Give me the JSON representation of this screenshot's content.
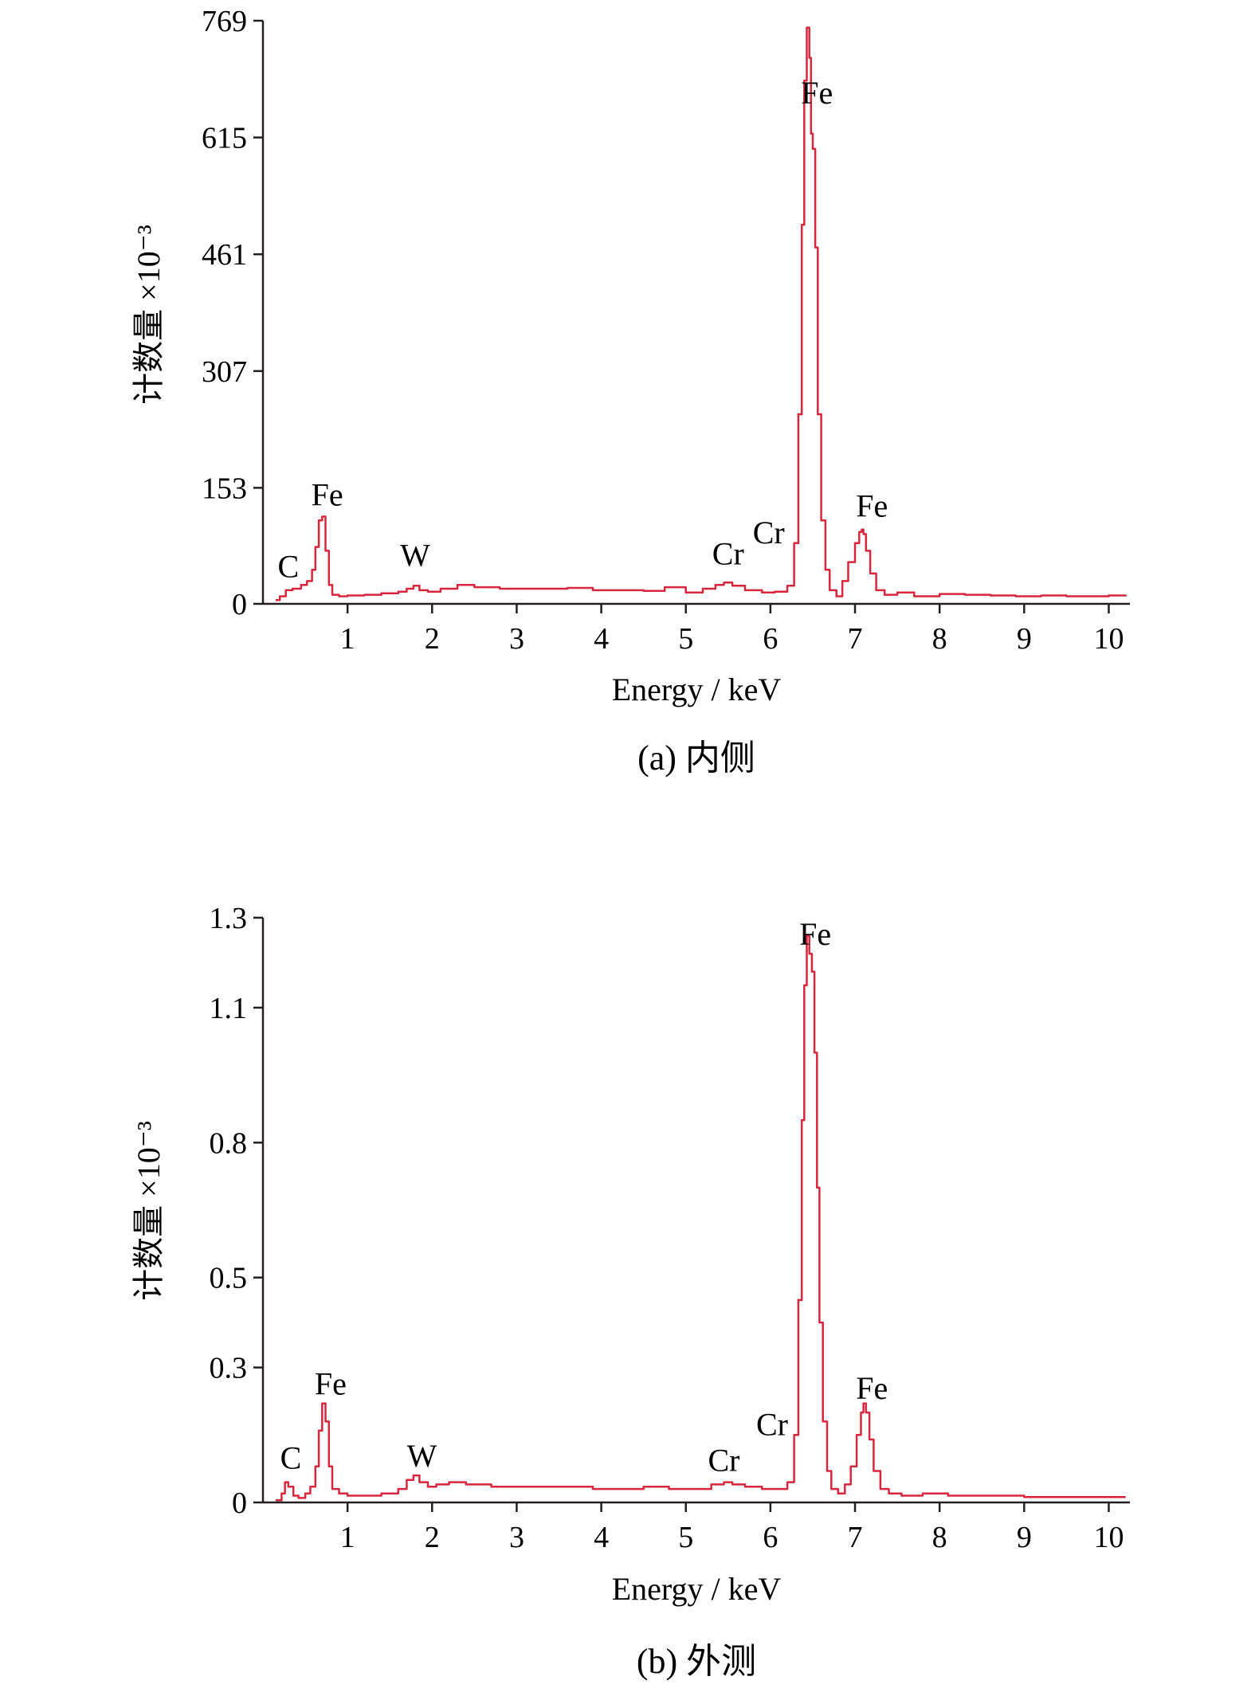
{
  "charts": [
    {
      "id": "a",
      "caption": "(a) 内侧",
      "chart_data": {
        "type": "line",
        "title": "",
        "xlabel": "Energy / keV",
        "ylabel": "计数量 ×10⁻³",
        "xlim": [
          0,
          10.25
        ],
        "ylim": [
          0,
          769
        ],
        "x_ticks": [
          1,
          2,
          3,
          4,
          5,
          6,
          7,
          8,
          9,
          10
        ],
        "y_ticks": [
          0,
          153,
          307,
          461,
          615,
          769
        ],
        "grid": false,
        "legend": "none",
        "line_color": "#d7263d",
        "series": [
          {
            "x": [
              0.15,
              0.2,
              0.27,
              0.35,
              0.45,
              0.52,
              0.58,
              0.62,
              0.66,
              0.7,
              0.74,
              0.78,
              0.82,
              0.9,
              1.0,
              1.2,
              1.4,
              1.6,
              1.7,
              1.78,
              1.85,
              1.95,
              2.1,
              2.3,
              2.5,
              2.8,
              3.0,
              3.3,
              3.6,
              3.9,
              4.2,
              4.5,
              4.75,
              5.0,
              5.2,
              5.35,
              5.45,
              5.55,
              5.7,
              5.9,
              6.05,
              6.2,
              6.28,
              6.33,
              6.37,
              6.4,
              6.43,
              6.46,
              6.48,
              6.5,
              6.53,
              6.56,
              6.6,
              6.65,
              6.7,
              6.78,
              6.85,
              6.92,
              7.0,
              7.05,
              7.08,
              7.1,
              7.13,
              7.18,
              7.25,
              7.35,
              7.5,
              7.7,
              8.0,
              8.3,
              8.6,
              8.9,
              9.2,
              9.5,
              9.8,
              10.0,
              10.2
            ],
            "y": [
              5,
              10,
              18,
              20,
              25,
              30,
              45,
              75,
              110,
              115,
              70,
              25,
              12,
              10,
              11,
              12,
              14,
              16,
              20,
              24,
              18,
              16,
              20,
              25,
              22,
              20,
              20,
              20,
              21,
              18,
              18,
              17,
              22,
              15,
              20,
              25,
              28,
              24,
              18,
              15,
              16,
              24,
              80,
              250,
              500,
              690,
              760,
              720,
              620,
              600,
              470,
              250,
              110,
              45,
              18,
              10,
              30,
              55,
              80,
              95,
              98,
              92,
              70,
              40,
              18,
              12,
              15,
              10,
              13,
              12,
              11,
              10,
              11,
              10,
              10,
              11,
              10
            ]
          }
        ],
        "peak_labels": [
          {
            "text": "C",
            "x": 0.3,
            "y": 35
          },
          {
            "text": "Fe",
            "x": 0.76,
            "y": 130
          },
          {
            "text": "W",
            "x": 1.8,
            "y": 50
          },
          {
            "text": "Cr",
            "x": 5.5,
            "y": 52
          },
          {
            "text": "Cr",
            "x": 5.98,
            "y": 80
          },
          {
            "text": "Fe",
            "x": 6.55,
            "y": 660
          },
          {
            "text": "Fe",
            "x": 7.2,
            "y": 115
          }
        ]
      }
    },
    {
      "id": "b",
      "caption": "(b) 外测",
      "chart_data": {
        "type": "line",
        "title": "",
        "xlabel": "Energy / keV",
        "ylabel": "计数量 ×10⁻³",
        "xlim": [
          0,
          10.25
        ],
        "ylim": [
          0,
          1.3
        ],
        "x_ticks": [
          1,
          2,
          3,
          4,
          5,
          6,
          7,
          8,
          9,
          10
        ],
        "y_ticks": [
          0,
          0.3,
          0.5,
          0.8,
          1.1,
          1.3
        ],
        "y_tick_labels": [
          "0",
          "0.3",
          "0.5",
          "0.8",
          "1.1",
          "1.3"
        ],
        "grid": false,
        "legend": "none",
        "line_color": "#d7263d",
        "series": [
          {
            "x": [
              0.15,
              0.22,
              0.26,
              0.3,
              0.36,
              0.42,
              0.5,
              0.56,
              0.62,
              0.66,
              0.7,
              0.74,
              0.78,
              0.82,
              0.9,
              1.0,
              1.2,
              1.4,
              1.6,
              1.7,
              1.78,
              1.85,
              1.95,
              2.05,
              2.2,
              2.4,
              2.7,
              3.0,
              3.3,
              3.6,
              3.9,
              4.2,
              4.5,
              4.8,
              5.1,
              5.3,
              5.45,
              5.55,
              5.7,
              5.9,
              6.05,
              6.2,
              6.28,
              6.33,
              6.37,
              6.4,
              6.43,
              6.46,
              6.49,
              6.52,
              6.55,
              6.58,
              6.62,
              6.67,
              6.72,
              6.8,
              6.88,
              6.95,
              7.02,
              7.07,
              7.1,
              7.13,
              7.17,
              7.22,
              7.3,
              7.4,
              7.55,
              7.8,
              8.1,
              8.4,
              8.7,
              9.0,
              9.3,
              9.6,
              9.9,
              10.2
            ],
            "y": [
              0.005,
              0.02,
              0.045,
              0.035,
              0.015,
              0.01,
              0.02,
              0.035,
              0.08,
              0.16,
              0.22,
              0.18,
              0.08,
              0.03,
              0.02,
              0.015,
              0.015,
              0.02,
              0.03,
              0.05,
              0.06,
              0.045,
              0.035,
              0.04,
              0.045,
              0.04,
              0.035,
              0.035,
              0.035,
              0.035,
              0.03,
              0.03,
              0.035,
              0.03,
              0.03,
              0.04,
              0.045,
              0.04,
              0.035,
              0.03,
              0.03,
              0.045,
              0.15,
              0.45,
              0.85,
              1.15,
              1.26,
              1.22,
              1.18,
              1.0,
              0.7,
              0.4,
              0.18,
              0.07,
              0.03,
              0.02,
              0.04,
              0.08,
              0.15,
              0.2,
              0.22,
              0.2,
              0.14,
              0.07,
              0.03,
              0.02,
              0.015,
              0.02,
              0.015,
              0.015,
              0.015,
              0.012,
              0.012,
              0.012,
              0.012,
              0.012
            ]
          }
        ],
        "peak_labels": [
          {
            "text": "C",
            "x": 0.33,
            "y": 0.075
          },
          {
            "text": "Fe",
            "x": 0.8,
            "y": 0.24
          },
          {
            "text": "W",
            "x": 1.88,
            "y": 0.08
          },
          {
            "text": "Cr",
            "x": 5.45,
            "y": 0.07
          },
          {
            "text": "Cr",
            "x": 6.02,
            "y": 0.15
          },
          {
            "text": "Fe",
            "x": 6.53,
            "y": 1.24
          },
          {
            "text": "Fe",
            "x": 7.2,
            "y": 0.23
          }
        ]
      }
    }
  ]
}
